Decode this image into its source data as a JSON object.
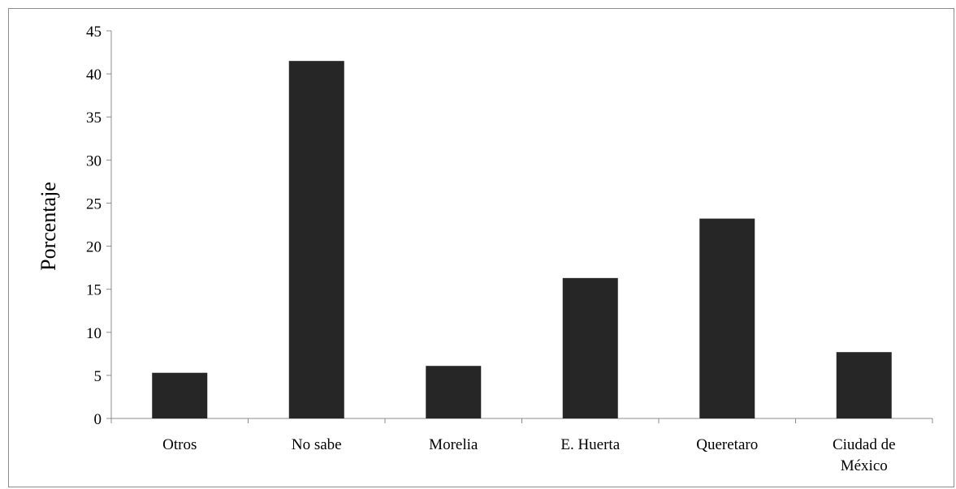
{
  "chart_data": {
    "type": "bar",
    "categories": [
      [
        "Otros"
      ],
      [
        "No sabe"
      ],
      [
        "Morelia"
      ],
      [
        "E. Huerta"
      ],
      [
        "Queretaro"
      ],
      [
        "Ciudad de",
        "México"
      ]
    ],
    "values": [
      5.3,
      41.5,
      6.1,
      16.3,
      23.2,
      7.7
    ],
    "title": "",
    "xlabel": "",
    "ylabel": "Porcentaje",
    "ylim": [
      0,
      45
    ],
    "yticks": [
      "0",
      "5",
      "10",
      "15",
      "20",
      "25",
      "30",
      "35",
      "40",
      "45"
    ],
    "grid": false,
    "legend": "none",
    "bar_color": "#262626",
    "axis_color": "#8c8c8c"
  }
}
